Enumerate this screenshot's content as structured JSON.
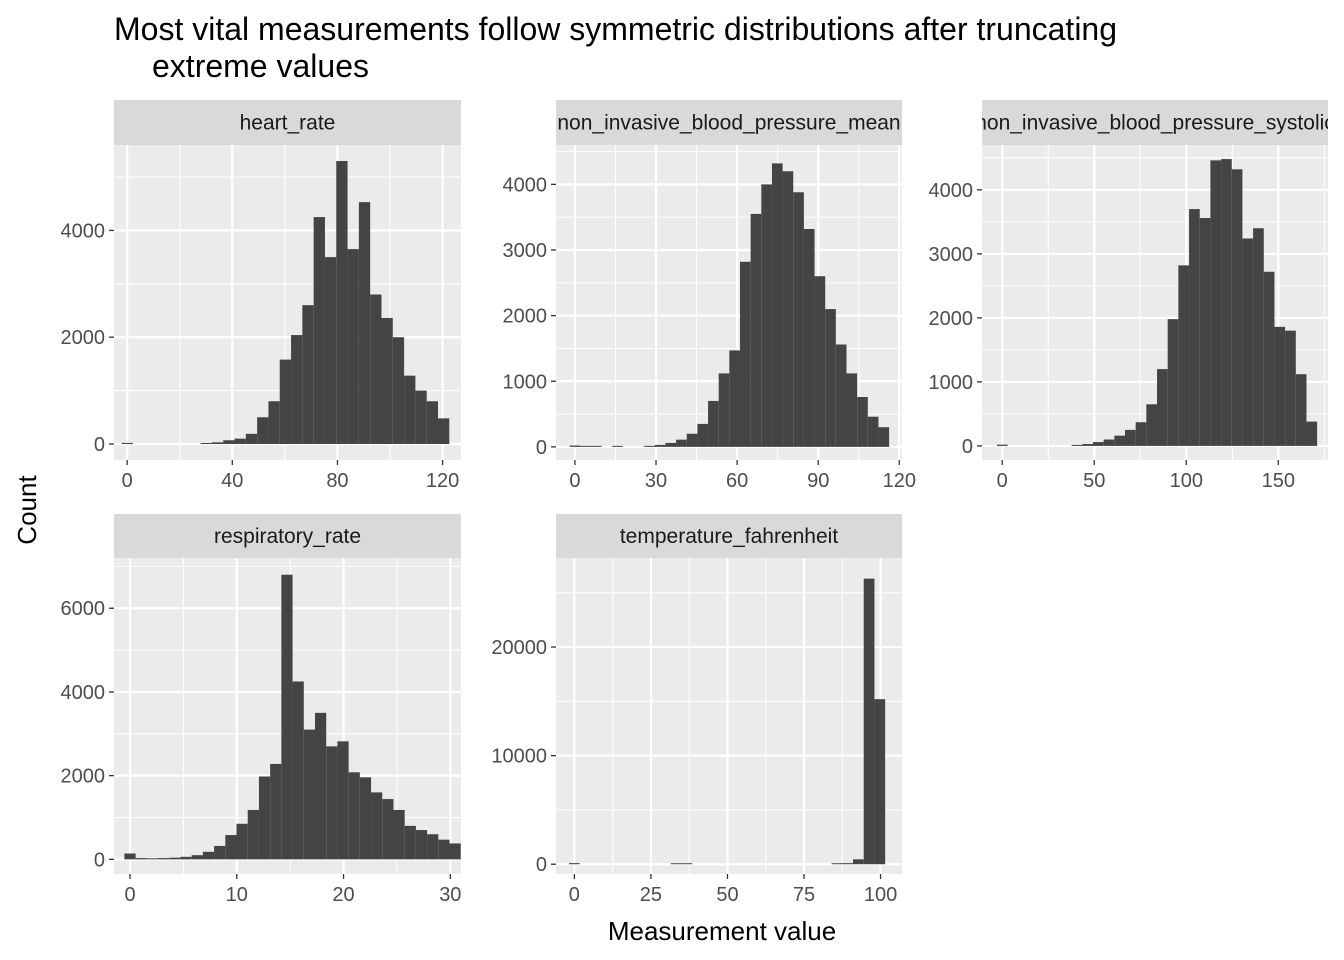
{
  "title_lines": [
    "Most vital measurements follow symmetric distributions after truncating",
    "extreme values"
  ],
  "chart_data": {
    "type": "bar",
    "layout": "facet_wrap",
    "xlabel": "Measurement value",
    "ylabel": "Count",
    "grid": true,
    "colors": {
      "bar": "#444444",
      "panel": "#ebebeb",
      "strip": "#d9d9d9",
      "grid": "#ffffff"
    },
    "facets": [
      {
        "name": "heart_rate",
        "strip_label": "heart_rate",
        "xlim": [
          -5,
          127
        ],
        "ylim": [
          -300,
          5600
        ],
        "xticks": [
          0,
          40,
          80,
          120
        ],
        "yticks": [
          0,
          2000,
          4000
        ],
        "bins": [
          {
            "x": 0,
            "w": 4.3,
            "y": 20
          },
          {
            "x": 30.1,
            "w": 4.3,
            "y": 10
          },
          {
            "x": 34.4,
            "w": 4.3,
            "y": 30
          },
          {
            "x": 38.7,
            "w": 4.3,
            "y": 70
          },
          {
            "x": 43.0,
            "w": 4.3,
            "y": 100
          },
          {
            "x": 47.3,
            "w": 4.3,
            "y": 190
          },
          {
            "x": 51.6,
            "w": 4.3,
            "y": 500
          },
          {
            "x": 55.9,
            "w": 4.3,
            "y": 800
          },
          {
            "x": 60.2,
            "w": 4.3,
            "y": 1580
          },
          {
            "x": 64.5,
            "w": 4.3,
            "y": 2040
          },
          {
            "x": 68.8,
            "w": 4.3,
            "y": 2600
          },
          {
            "x": 73.1,
            "w": 4.3,
            "y": 4250
          },
          {
            "x": 77.4,
            "w": 4.3,
            "y": 3500
          },
          {
            "x": 81.7,
            "w": 4.3,
            "y": 5300
          },
          {
            "x": 86.0,
            "w": 4.3,
            "y": 3650
          },
          {
            "x": 90.3,
            "w": 4.3,
            "y": 4530
          },
          {
            "x": 94.6,
            "w": 4.3,
            "y": 2800
          },
          {
            "x": 98.9,
            "w": 4.3,
            "y": 2360
          },
          {
            "x": 103.2,
            "w": 4.3,
            "y": 2000
          },
          {
            "x": 107.5,
            "w": 4.3,
            "y": 1280
          },
          {
            "x": 111.8,
            "w": 4.3,
            "y": 1000
          },
          {
            "x": 116.1,
            "w": 4.3,
            "y": 800
          },
          {
            "x": 120.4,
            "w": 4.3,
            "y": 480
          }
        ]
      },
      {
        "name": "non_invasive_blood_pressure_mean",
        "strip_label": "non_invasive_blood_pressure_mean",
        "xlim": [
          -7,
          121
        ],
        "ylim": [
          -200,
          4600
        ],
        "xticks": [
          0,
          30,
          60,
          90,
          120
        ],
        "yticks": [
          0,
          1000,
          2000,
          3000,
          4000
        ],
        "bins": [
          {
            "x": 0,
            "w": 3.94,
            "y": 20
          },
          {
            "x": 3.94,
            "w": 3.94,
            "y": 5
          },
          {
            "x": 7.88,
            "w": 3.94,
            "y": 5
          },
          {
            "x": 15.76,
            "w": 3.94,
            "y": 15
          },
          {
            "x": 27.58,
            "w": 3.94,
            "y": 10
          },
          {
            "x": 31.52,
            "w": 3.94,
            "y": 30
          },
          {
            "x": 35.46,
            "w": 3.94,
            "y": 60
          },
          {
            "x": 39.4,
            "w": 3.94,
            "y": 110
          },
          {
            "x": 43.34,
            "w": 3.94,
            "y": 200
          },
          {
            "x": 47.28,
            "w": 3.94,
            "y": 350
          },
          {
            "x": 51.22,
            "w": 3.94,
            "y": 700
          },
          {
            "x": 55.16,
            "w": 3.94,
            "y": 1120
          },
          {
            "x": 59.1,
            "w": 3.94,
            "y": 1470
          },
          {
            "x": 63.04,
            "w": 3.94,
            "y": 2820
          },
          {
            "x": 66.98,
            "w": 3.94,
            "y": 3550
          },
          {
            "x": 70.92,
            "w": 3.94,
            "y": 4000
          },
          {
            "x": 74.86,
            "w": 3.94,
            "y": 4320
          },
          {
            "x": 78.8,
            "w": 3.94,
            "y": 4200
          },
          {
            "x": 82.74,
            "w": 3.94,
            "y": 3880
          },
          {
            "x": 86.68,
            "w": 3.94,
            "y": 3320
          },
          {
            "x": 90.62,
            "w": 3.94,
            "y": 2600
          },
          {
            "x": 94.56,
            "w": 3.94,
            "y": 2100
          },
          {
            "x": 98.5,
            "w": 3.94,
            "y": 1560
          },
          {
            "x": 102.44,
            "w": 3.94,
            "y": 1120
          },
          {
            "x": 106.38,
            "w": 3.94,
            "y": 760
          },
          {
            "x": 110.32,
            "w": 3.94,
            "y": 460
          },
          {
            "x": 114.26,
            "w": 3.94,
            "y": 300
          }
        ]
      },
      {
        "name": "non_invasive_blood_pressure_systolic",
        "strip_label": "non_invasive_blood_pressure_systolic",
        "xlim": [
          -11,
          177
        ],
        "ylim": [
          -220,
          4700
        ],
        "xticks": [
          0,
          50,
          100,
          150
        ],
        "yticks": [
          0,
          1000,
          2000,
          3000,
          4000
        ],
        "bins": [
          {
            "x": 0,
            "w": 5.8,
            "y": 20
          },
          {
            "x": 40.6,
            "w": 5.8,
            "y": 15
          },
          {
            "x": 46.4,
            "w": 5.8,
            "y": 30
          },
          {
            "x": 52.2,
            "w": 5.8,
            "y": 60
          },
          {
            "x": 58.0,
            "w": 5.8,
            "y": 100
          },
          {
            "x": 63.8,
            "w": 5.8,
            "y": 160
          },
          {
            "x": 69.6,
            "w": 5.8,
            "y": 250
          },
          {
            "x": 75.4,
            "w": 5.8,
            "y": 370
          },
          {
            "x": 81.2,
            "w": 5.8,
            "y": 650
          },
          {
            "x": 87.0,
            "w": 5.8,
            "y": 1200
          },
          {
            "x": 92.8,
            "w": 5.8,
            "y": 1980
          },
          {
            "x": 98.6,
            "w": 5.8,
            "y": 2820
          },
          {
            "x": 104.4,
            "w": 5.8,
            "y": 3700
          },
          {
            "x": 110.2,
            "w": 5.8,
            "y": 3560
          },
          {
            "x": 116.0,
            "w": 5.8,
            "y": 4460
          },
          {
            "x": 121.8,
            "w": 5.8,
            "y": 4480
          },
          {
            "x": 127.6,
            "w": 5.8,
            "y": 4320
          },
          {
            "x": 133.4,
            "w": 5.8,
            "y": 3240
          },
          {
            "x": 139.2,
            "w": 5.8,
            "y": 3400
          },
          {
            "x": 145.0,
            "w": 5.8,
            "y": 2720
          },
          {
            "x": 150.8,
            "w": 5.8,
            "y": 1860
          },
          {
            "x": 156.6,
            "w": 5.8,
            "y": 1800
          },
          {
            "x": 162.4,
            "w": 5.8,
            "y": 1120
          },
          {
            "x": 168.2,
            "w": 5.8,
            "y": 380
          }
        ]
      },
      {
        "name": "respiratory_rate",
        "strip_label": "respiratory_rate",
        "xlim": [
          -1.5,
          31
        ],
        "ylim": [
          -350,
          7200
        ],
        "xticks": [
          0,
          10,
          20,
          30
        ],
        "yticks": [
          0,
          2000,
          4000,
          6000
        ],
        "bins": [
          {
            "x": 0,
            "w": 1.05,
            "y": 140
          },
          {
            "x": 1.05,
            "w": 1.05,
            "y": 30
          },
          {
            "x": 2.1,
            "w": 1.05,
            "y": 20
          },
          {
            "x": 3.15,
            "w": 1.05,
            "y": 30
          },
          {
            "x": 4.2,
            "w": 1.05,
            "y": 40
          },
          {
            "x": 5.25,
            "w": 1.05,
            "y": 60
          },
          {
            "x": 6.3,
            "w": 1.05,
            "y": 100
          },
          {
            "x": 7.35,
            "w": 1.05,
            "y": 180
          },
          {
            "x": 8.4,
            "w": 1.05,
            "y": 320
          },
          {
            "x": 9.45,
            "w": 1.05,
            "y": 580
          },
          {
            "x": 10.5,
            "w": 1.05,
            "y": 850
          },
          {
            "x": 11.55,
            "w": 1.05,
            "y": 1180
          },
          {
            "x": 12.6,
            "w": 1.05,
            "y": 1980
          },
          {
            "x": 13.65,
            "w": 1.05,
            "y": 2280
          },
          {
            "x": 14.7,
            "w": 1.05,
            "y": 6800
          },
          {
            "x": 15.75,
            "w": 1.05,
            "y": 4250
          },
          {
            "x": 16.8,
            "w": 1.05,
            "y": 3100
          },
          {
            "x": 17.85,
            "w": 1.05,
            "y": 3500
          },
          {
            "x": 18.9,
            "w": 1.05,
            "y": 2700
          },
          {
            "x": 19.95,
            "w": 1.05,
            "y": 2820
          },
          {
            "x": 21.0,
            "w": 1.05,
            "y": 2080
          },
          {
            "x": 22.05,
            "w": 1.05,
            "y": 1960
          },
          {
            "x": 23.1,
            "w": 1.05,
            "y": 1600
          },
          {
            "x": 24.15,
            "w": 1.05,
            "y": 1440
          },
          {
            "x": 25.2,
            "w": 1.05,
            "y": 1180
          },
          {
            "x": 26.25,
            "w": 1.05,
            "y": 800
          },
          {
            "x": 27.3,
            "w": 1.05,
            "y": 700
          },
          {
            "x": 28.35,
            "w": 1.05,
            "y": 600
          },
          {
            "x": 29.4,
            "w": 1.05,
            "y": 470
          },
          {
            "x": 30.45,
            "w": 1.05,
            "y": 380
          }
        ]
      },
      {
        "name": "temperature_fahrenheit",
        "strip_label": "temperature_fahrenheit",
        "xlim": [
          -6,
          107
        ],
        "ylim": [
          -900,
          28200
        ],
        "xticks": [
          0,
          25,
          50,
          75,
          100
        ],
        "yticks": [
          0,
          10000,
          20000
        ],
        "bins": [
          {
            "x": 0,
            "w": 3.5,
            "y": 100
          },
          {
            "x": 33.25,
            "w": 3.5,
            "y": 60
          },
          {
            "x": 36.75,
            "w": 3.5,
            "y": 40
          },
          {
            "x": 85.75,
            "w": 3.5,
            "y": 60
          },
          {
            "x": 89.25,
            "w": 3.5,
            "y": 100
          },
          {
            "x": 92.75,
            "w": 3.5,
            "y": 450
          },
          {
            "x": 96.25,
            "w": 3.5,
            "y": 26300
          },
          {
            "x": 99.75,
            "w": 3.5,
            "y": 15200
          }
        ]
      }
    ]
  }
}
